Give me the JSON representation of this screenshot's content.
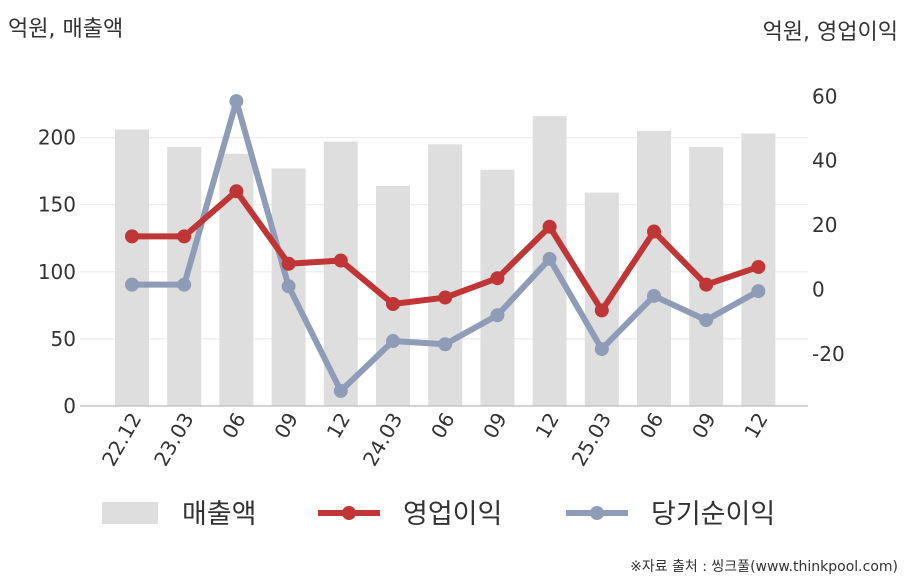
{
  "chart_data": {
    "type": "bar+line",
    "left_axis_unit": "억원, 매출액",
    "right_axis_unit": "억원, 영업이익",
    "categories": [
      "22.12",
      "23.03",
      "06",
      "09",
      "12",
      "24.03",
      "06",
      "09",
      "12",
      "25.03",
      "06",
      "09",
      "12"
    ],
    "left_ticks": [
      "0",
      "50",
      "100",
      "150",
      "200"
    ],
    "right_ticks": [
      "-20",
      "0",
      "20",
      "40",
      "60"
    ],
    "left_range": [
      0,
      230
    ],
    "right_range": [
      -37,
      60
    ],
    "series": [
      {
        "name": "매출액",
        "kind": "bar",
        "axis": "left",
        "color": "#dedede",
        "values": [
          206,
          193,
          188,
          177,
          197,
          164,
          195,
          176,
          216,
          159,
          205,
          193,
          203
        ]
      },
      {
        "name": "영업이익",
        "kind": "line",
        "axis": "right",
        "color": "#c03535",
        "values": [
          16.5,
          16.5,
          30.5,
          8,
          9,
          -4.5,
          -2.5,
          3.5,
          19.5,
          -6.5,
          18,
          1.5,
          7
        ]
      },
      {
        "name": "당기순이익",
        "kind": "line",
        "axis": "right",
        "color": "#8f9cb8",
        "values": [
          1.5,
          1.5,
          58.5,
          1,
          -31.5,
          -16,
          -17,
          -8,
          9.5,
          -18.5,
          -2,
          -9.5,
          -0.5
        ]
      }
    ],
    "grid": true,
    "legend_position": "bottom"
  },
  "source_note": "※자료 출처 : 씽크풀(www.thinkpool.com)"
}
